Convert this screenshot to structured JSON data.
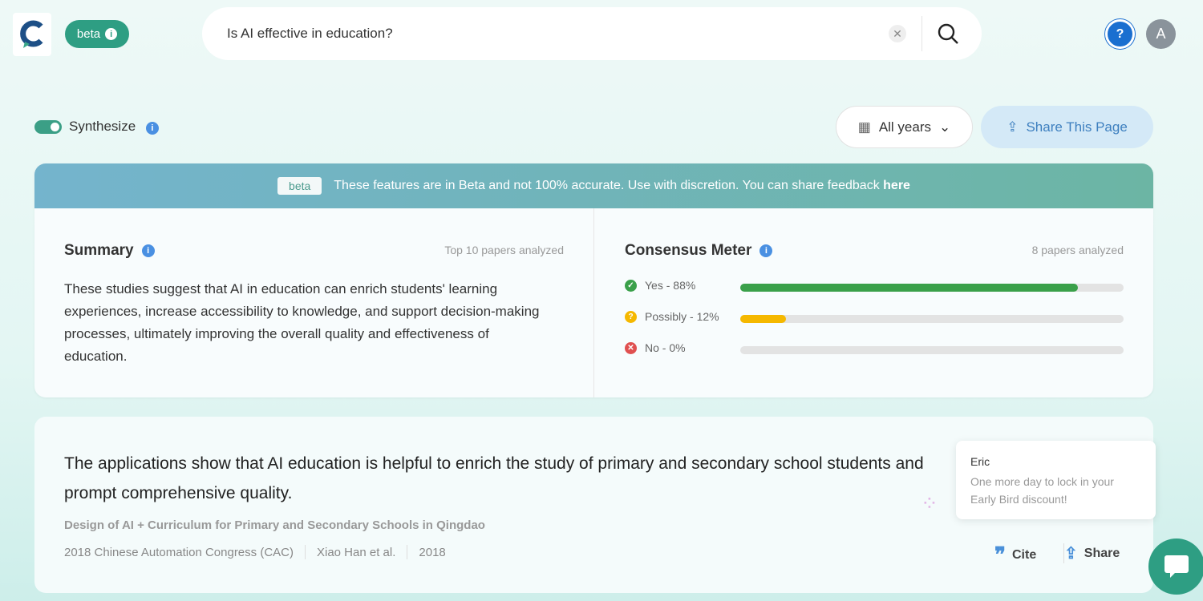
{
  "header": {
    "beta_label": "beta",
    "search_value": "Is AI effective in education?",
    "avatar_initial": "A",
    "help_label": "?"
  },
  "controls": {
    "synthesize_label": "Synthesize",
    "synthesize_on": true,
    "years_label": "All years",
    "share_page_label": "Share This Page"
  },
  "banner": {
    "badge": "beta",
    "text": "These features are in Beta and not 100% accurate. Use with discretion. You can share feedback ",
    "link": "here"
  },
  "summary": {
    "title": "Summary",
    "meta": "Top 10 papers analyzed",
    "text": "These studies suggest that AI in education can enrich students' learning experiences, increase accessibility to knowledge, and support decision-making processes, ultimately improving the overall quality and effectiveness of education."
  },
  "consensus": {
    "title": "Consensus Meter",
    "meta": "8 papers analyzed",
    "rows": [
      {
        "label": "Yes - 88%",
        "percent": 88,
        "color": "#3aa04a",
        "icon": "check"
      },
      {
        "label": "Possibly - 12%",
        "percent": 12,
        "color": "#f5b800",
        "icon": "?"
      },
      {
        "label": "No - 0%",
        "percent": 0,
        "color": "#e05050",
        "icon": "x"
      }
    ]
  },
  "result": {
    "claim": "The applications show that AI education is helpful to enrich the study of primary and secondary school students and prompt comprehensive quality.",
    "paper_title": "Design of AI + Curriculum for Primary and Secondary Schools in Qingdao",
    "venue": "2018 Chinese Automation Congress (CAC)",
    "authors": "Xiao Han et al.",
    "year": "2018",
    "cite_label": "Cite",
    "share_label": "Share"
  },
  "popup": {
    "name": "Eric",
    "message": "One more day to lock in your Early Bird discount!"
  }
}
